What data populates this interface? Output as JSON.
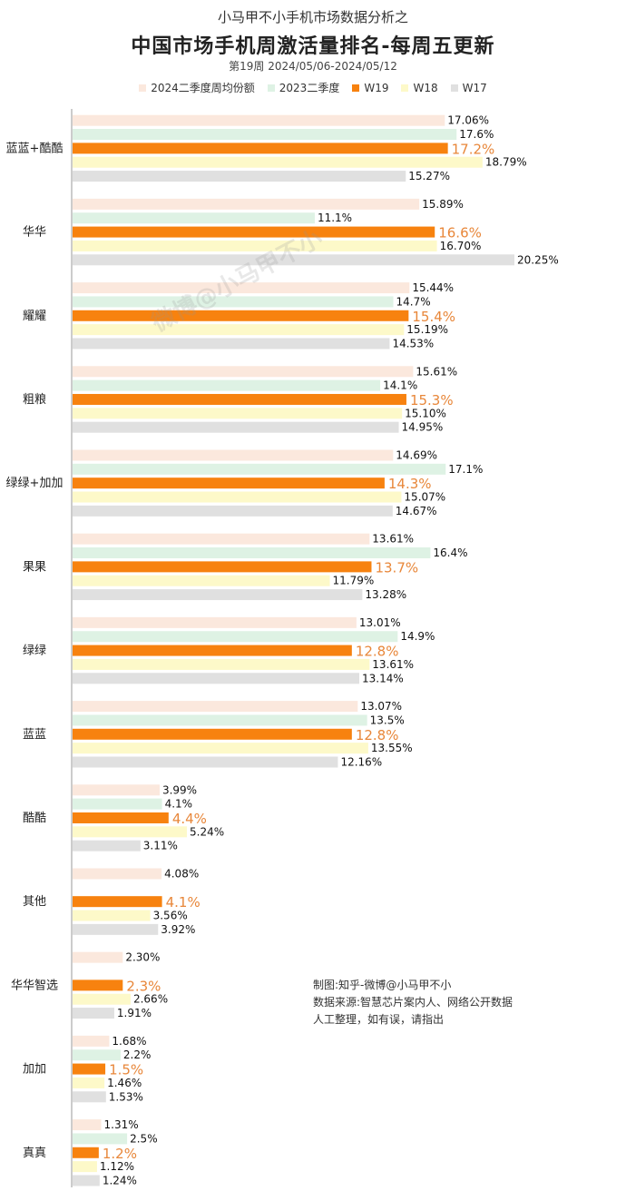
{
  "header": {
    "subtitle": "小马甲不小手机市场数据分析之",
    "title": "中国市场手机周激活量排名-每周五更新",
    "period": "第19周 2024/05/06-2024/05/12"
  },
  "note": {
    "line1": "制图:知乎-微博@小马甲不小",
    "line2": "数据来源:智慧芯片案内人、网络公开数据",
    "line3": "人工整理，如有误，请指出"
  },
  "watermark": "微博@小马甲不小",
  "colors": {
    "q2_2024": "#fbe8dd",
    "q2_2023": "#def2e4",
    "w19": "#f7820f",
    "w18": "#fdf9c9",
    "w17": "#e0e0e0",
    "w19_label": "#e8873a",
    "axis": "#999999"
  },
  "chart_data": {
    "type": "bar",
    "orientation": "horizontal",
    "unit": "%",
    "xlim": [
      0,
      21
    ],
    "categories": [
      "蓝蓝+酷酷",
      "华华",
      "耀耀",
      "粗粮",
      "绿绿+加加",
      "果果",
      "绿绿",
      "蓝蓝",
      "酷酷",
      "其他",
      "华华智选",
      "加加",
      "真真"
    ],
    "series": [
      {
        "name": "2024二季度周均份额",
        "color": "#fbe8dd",
        "values": [
          17.06,
          15.89,
          15.44,
          15.61,
          14.69,
          13.61,
          13.01,
          13.07,
          3.99,
          4.08,
          2.3,
          1.68,
          1.31
        ],
        "labels": [
          "17.06%",
          "15.89%",
          "15.44%",
          "15.61%",
          "14.69%",
          "13.61%",
          "13.01%",
          "13.07%",
          "3.99%",
          "4.08%",
          "2.30%",
          "1.68%",
          "1.31%"
        ]
      },
      {
        "name": "2023二季度",
        "color": "#def2e4",
        "values": [
          17.6,
          11.1,
          14.7,
          14.1,
          17.1,
          16.4,
          14.9,
          13.5,
          4.1,
          null,
          null,
          2.2,
          2.5
        ],
        "labels": [
          "17.6%",
          "11.1%",
          "14.7%",
          "14.1%",
          "17.1%",
          "16.4%",
          "14.9%",
          "13.5%",
          "4.1%",
          null,
          null,
          "2.2%",
          "2.5%"
        ]
      },
      {
        "name": "W19",
        "color": "#f7820f",
        "values": [
          17.2,
          16.6,
          15.4,
          15.3,
          14.3,
          13.7,
          12.8,
          12.8,
          4.4,
          4.1,
          2.3,
          1.5,
          1.2
        ],
        "labels": [
          "17.2%",
          "16.6%",
          "15.4%",
          "15.3%",
          "14.3%",
          "13.7%",
          "12.8%",
          "12.8%",
          "4.4%",
          "4.1%",
          "2.3%",
          "1.5%",
          "1.2%"
        ]
      },
      {
        "name": "W18",
        "color": "#fdf9c9",
        "values": [
          18.79,
          16.7,
          15.19,
          15.1,
          15.07,
          11.79,
          13.61,
          13.55,
          5.24,
          3.56,
          2.66,
          1.46,
          1.12
        ],
        "labels": [
          "18.79%",
          "16.70%",
          "15.19%",
          "15.10%",
          "15.07%",
          "11.79%",
          "13.61%",
          "13.55%",
          "5.24%",
          "3.56%",
          "2.66%",
          "1.46%",
          "1.12%"
        ]
      },
      {
        "name": "W17",
        "color": "#e0e0e0",
        "values": [
          15.27,
          20.25,
          14.53,
          14.95,
          14.67,
          13.28,
          13.14,
          12.16,
          3.11,
          3.92,
          1.91,
          1.53,
          1.24
        ],
        "labels": [
          "15.27%",
          "20.25%",
          "14.53%",
          "14.95%",
          "14.67%",
          "13.28%",
          "13.14%",
          "12.16%",
          "3.11%",
          "3.92%",
          "1.91%",
          "1.53%",
          "1.24%"
        ]
      }
    ],
    "legend_position": "top",
    "grid": false
  }
}
